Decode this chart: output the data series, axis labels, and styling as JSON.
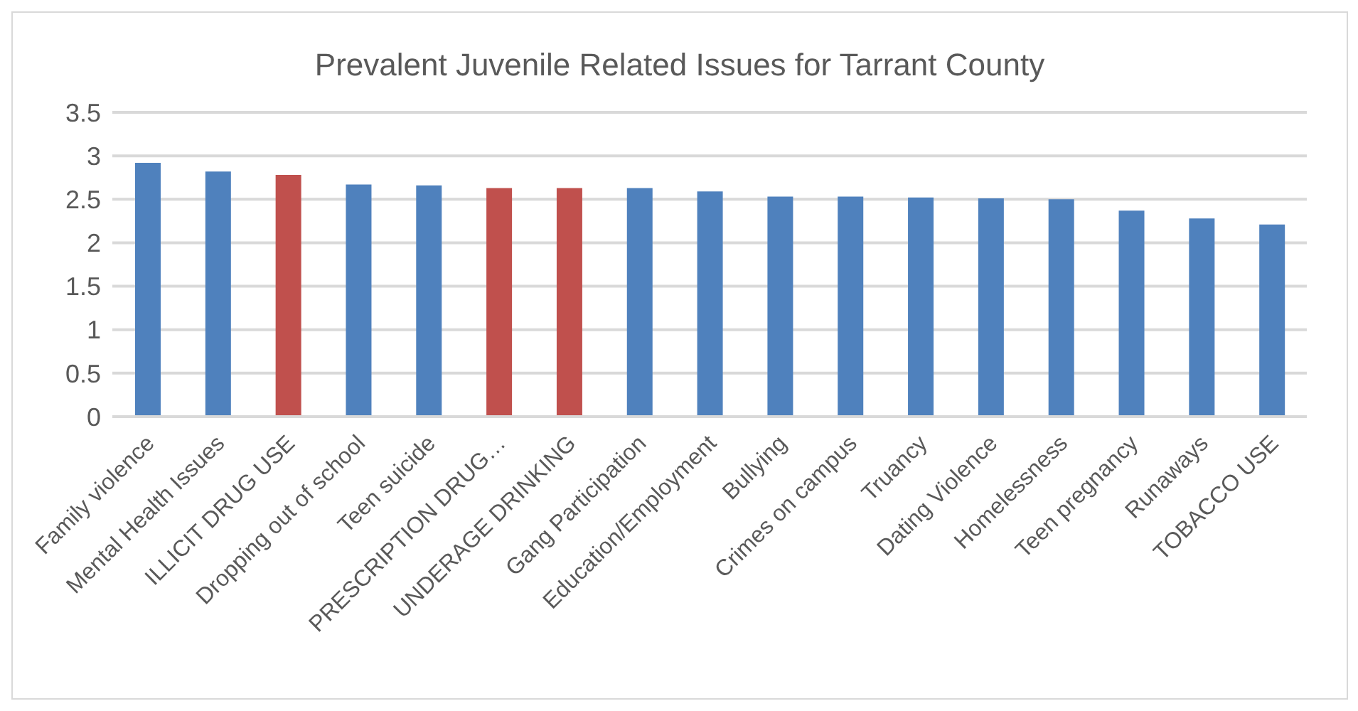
{
  "chart_data": {
    "type": "bar",
    "title": "Prevalent Juvenile Related Issues for Tarrant County",
    "categories": [
      "Family violence",
      "Mental Health Issues",
      "ILLICIT DRUG USE",
      "Dropping out of school",
      "Teen suicide",
      "PRESCRIPTION DRUG…",
      "UNDERAGE DRINKING",
      "Gang Participation",
      "Education/Employment",
      "Bullying",
      "Crimes on campus",
      "Truancy",
      "Dating Violence",
      "Homelessness",
      "Teen pregnancy",
      "Runaways",
      "TOBACCO USE"
    ],
    "values": [
      2.92,
      2.82,
      2.78,
      2.67,
      2.66,
      2.63,
      2.63,
      2.63,
      2.59,
      2.53,
      2.53,
      2.52,
      2.51,
      2.5,
      2.37,
      2.28,
      2.21
    ],
    "colors": [
      "#4f81bd",
      "#4f81bd",
      "#c0504d",
      "#4f81bd",
      "#4f81bd",
      "#c0504d",
      "#c0504d",
      "#4f81bd",
      "#4f81bd",
      "#4f81bd",
      "#4f81bd",
      "#4f81bd",
      "#4f81bd",
      "#4f81bd",
      "#4f81bd",
      "#4f81bd",
      "#4f81bd"
    ],
    "ylim": [
      0,
      3.5
    ],
    "yticks": [
      0,
      0.5,
      1,
      1.5,
      2,
      2.5,
      3,
      3.5
    ],
    "grid": "y",
    "legend": false
  }
}
